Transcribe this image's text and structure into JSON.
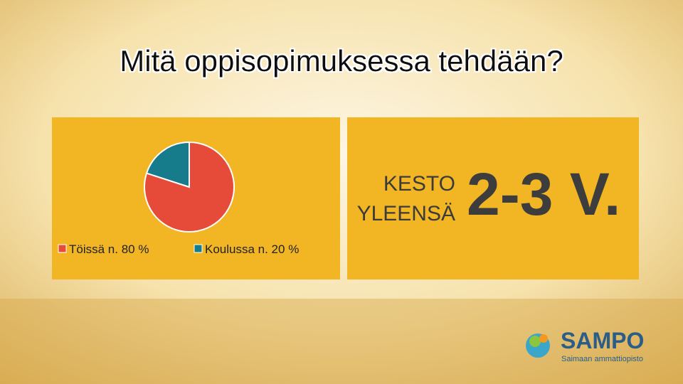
{
  "title": "Mitä oppisopimuksessa tehdään?",
  "chart_data": {
    "type": "pie",
    "categories": [
      "Töissä n. 80 %",
      "Koulussa n. 20 %"
    ],
    "values": [
      80,
      20
    ],
    "colors": [
      "#e64b3a",
      "#167b8a"
    ]
  },
  "duration": {
    "label": [
      "KESTO",
      "YLEENSÄ"
    ],
    "value": "2-3 V."
  },
  "logo": {
    "name": "SAMPO",
    "subtitle": "Saimaan ammattiopisto"
  }
}
